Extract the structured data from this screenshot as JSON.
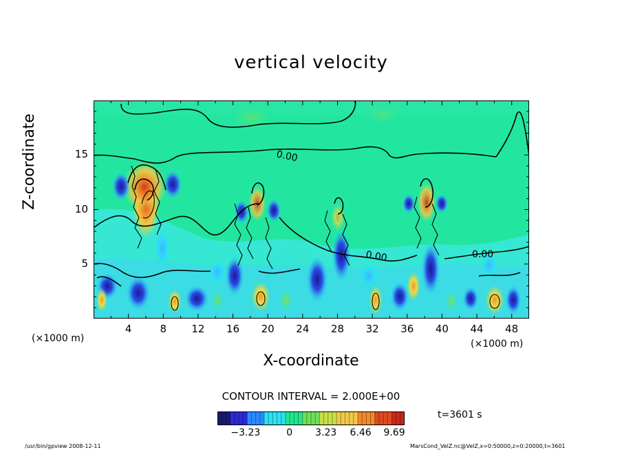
{
  "chart_data": {
    "type": "heatmap",
    "title": "vertical velocity",
    "xlabel": "X-coordinate",
    "ylabel": "Z-coordinate",
    "x_unit_left": "(×1000 m)",
    "x_unit_right": "(×1000 m)",
    "xlim": [
      0,
      50
    ],
    "ylim": [
      0,
      20
    ],
    "x_ticks": [
      "4",
      "8",
      "12",
      "16",
      "20",
      "24",
      "28",
      "32",
      "36",
      "40",
      "44",
      "48"
    ],
    "y_ticks": [
      "5",
      "10",
      "15"
    ],
    "contour_interval_text": "CONTOUR INTERVAL = 2.000E+00",
    "contour_labels": [
      "0.00",
      "0.00",
      "0.00"
    ],
    "colorbar": {
      "ticks": [
        "−3.23",
        "0",
        "3.23",
        "6.46",
        "9.69"
      ],
      "colors": [
        "#1a1a6e",
        "#2a2ad6",
        "#2a8cff",
        "#2de1f4",
        "#1ee88e",
        "#6fe05a",
        "#c8e04a",
        "#f2c848",
        "#f08a2a",
        "#e04a20",
        "#c82818"
      ]
    },
    "updrafts": [
      {
        "x": 6,
        "z_top": 14,
        "max": 9.69
      },
      {
        "x": 19,
        "z_top": 12,
        "max": 5
      },
      {
        "x": 28,
        "z_top": 11,
        "max": 3
      },
      {
        "x": 38,
        "z_top": 12,
        "max": 6
      }
    ],
    "time_label": "t=3601 s"
  },
  "footer": {
    "left": "/usr/bin/gpview   2008-12-11",
    "right": "MarsCond_VelZ.nc@VelZ,x=0:50000,z=0:20000,t=3601"
  }
}
